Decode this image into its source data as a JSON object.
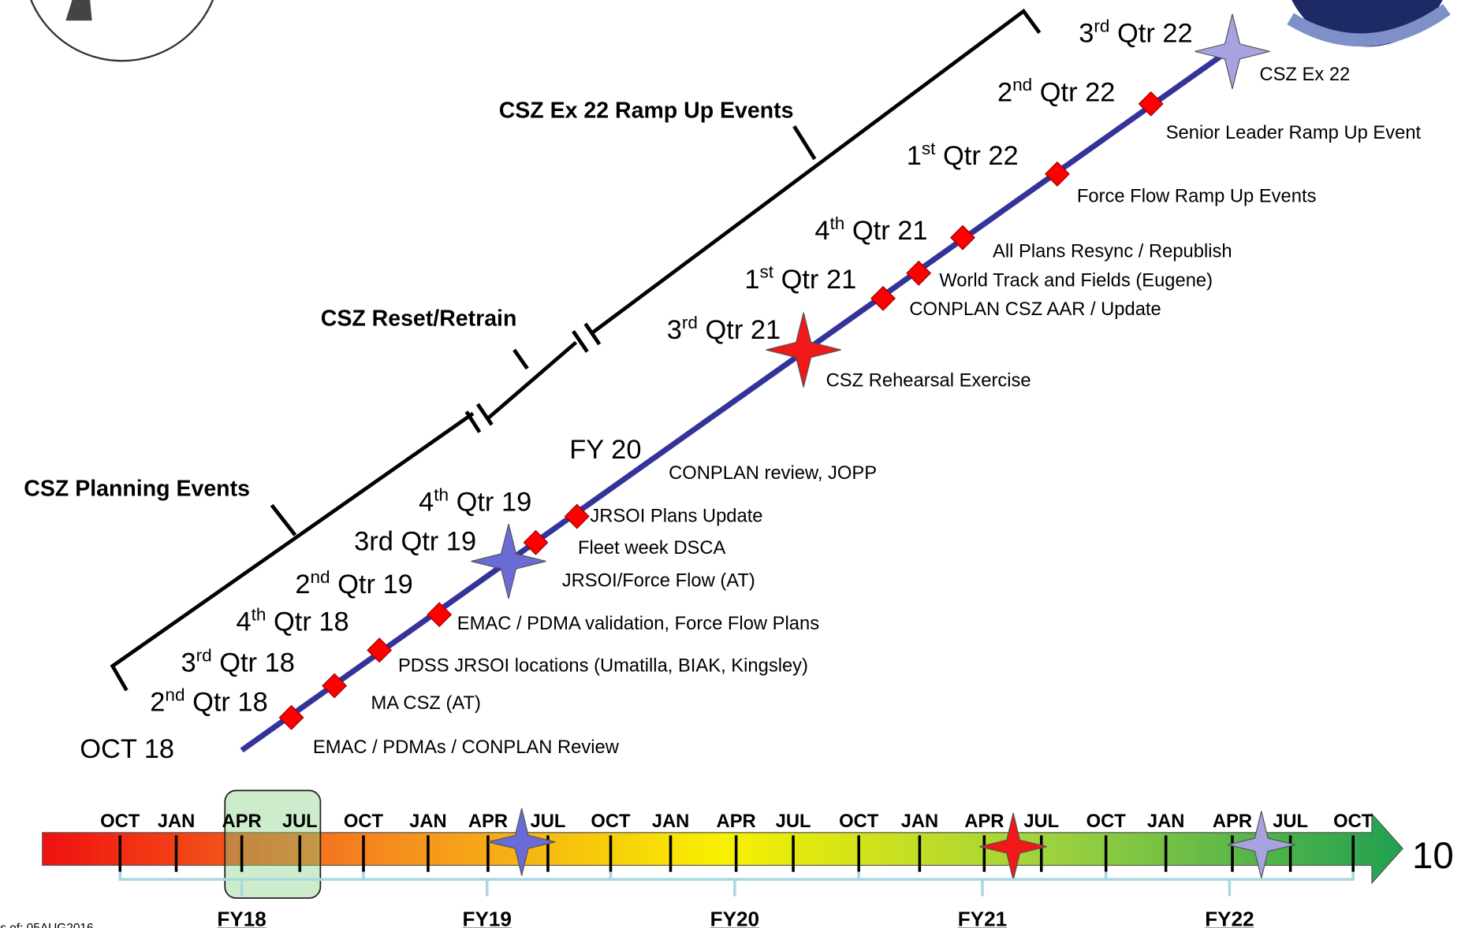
{
  "headers": [
    "CSZ Ex 22 Ramp Up Events",
    "CSZ Reset/Retrain",
    "CSZ Planning Events"
  ],
  "quarters": [
    {
      "num": "3",
      "sup": "rd",
      "text": " Qtr 22"
    },
    {
      "num": "2",
      "sup": "nd",
      "text": " Qtr 22"
    },
    {
      "num": "1",
      "sup": "st",
      "text": " Qtr 22"
    },
    {
      "num": "4",
      "sup": "th",
      "text": " Qtr 21"
    },
    {
      "num": "1",
      "sup": "st",
      "text": " Qtr 21"
    },
    {
      "num": "3",
      "sup": "rd",
      "text": " Qtr 21"
    },
    {
      "text": "FY 20"
    },
    {
      "num": "4",
      "sup": "th",
      "text": " Qtr 19"
    },
    {
      "text": "3rd Qtr 19"
    },
    {
      "num": "2",
      "sup": "nd",
      "text": " Qtr 19"
    },
    {
      "num": "4",
      "sup": "th",
      "text": " Qtr 18"
    },
    {
      "num": "3",
      "sup": "rd",
      "text": " Qtr 18"
    },
    {
      "num": "2",
      "sup": "nd",
      "text": " Qtr 18"
    },
    {
      "text": "OCT 18"
    }
  ],
  "events": [
    "CSZ Ex 22",
    "Senior Leader Ramp Up Event",
    "Force Flow Ramp Up Events",
    "All Plans Resync / Republish",
    "World Track and Fields (Eugene)",
    "CONPLAN CSZ AAR / Update",
    "CSZ Rehearsal Exercise",
    "CONPLAN review, JOPP",
    "JRSOI Plans Update",
    "Fleet week DSCA",
    "JRSOI/Force Flow (AT)",
    "EMAC / PDMA validation, Force Flow Plans",
    "PDSS JRSOI locations (Umatilla, BIAK, Kingsley)",
    "MA CSZ (AT)",
    "EMAC / PDMAs / CONPLAN Review"
  ],
  "timeline": {
    "months": [
      "OCT",
      "JAN",
      "APR",
      "JUL",
      "OCT",
      "JAN",
      "APR",
      "JUL",
      "OCT",
      "JAN",
      "APR",
      "JUL",
      "OCT",
      "JAN",
      "APR",
      "JUL",
      "OCT",
      "JAN",
      "APR",
      "JUL",
      "OCT"
    ],
    "fiscal_years": [
      "FY18",
      "FY19",
      "FY20",
      "FY21",
      "FY22"
    ]
  },
  "footer": {
    "date": "s of: 05AUG2016",
    "page": "10"
  }
}
